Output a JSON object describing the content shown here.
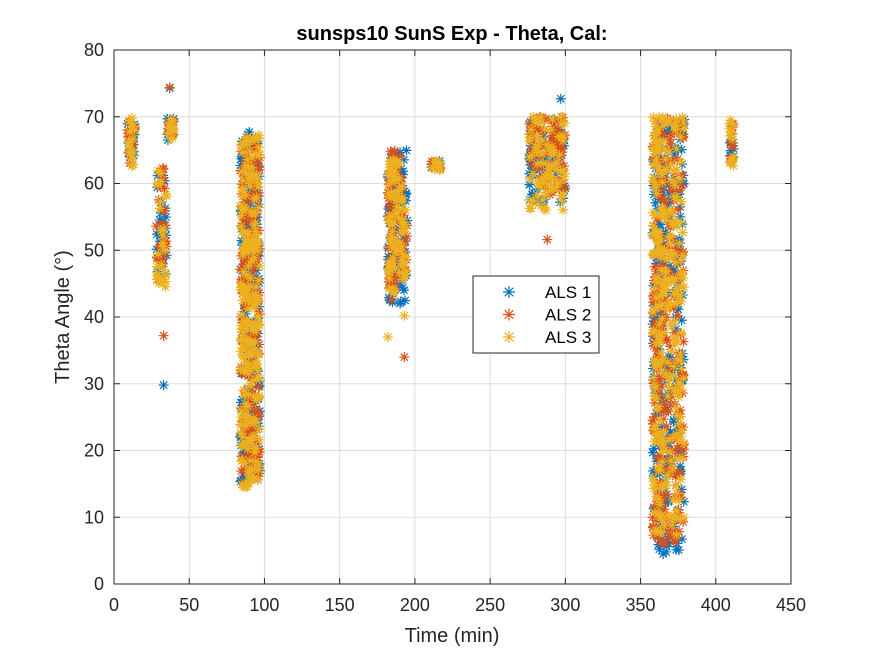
{
  "chart_data": {
    "type": "scatter",
    "title": "sunsps10 SunS Exp - Theta, Cal:",
    "xlabel": "Time (min)",
    "ylabel": "Theta Angle (°)",
    "xlim": [
      0,
      450
    ],
    "ylim": [
      0,
      80
    ],
    "xticks": [
      0,
      50,
      100,
      150,
      200,
      250,
      300,
      350,
      400,
      450
    ],
    "yticks": [
      0,
      10,
      20,
      30,
      40,
      50,
      60,
      70,
      80
    ],
    "grid": true,
    "legend_position": "center-right",
    "marker": "asterisk",
    "series": [
      {
        "name": "ALS 1",
        "color": "#0072BD",
        "segments": [
          {
            "x": [
              9,
              14
            ],
            "y": [
              62.5,
              69.5
            ],
            "n": 18
          },
          {
            "x": [
              28,
              35
            ],
            "y": [
              45.5,
              62.5
            ],
            "n": 30
          },
          {
            "x": [
              35.5,
              40
            ],
            "y": [
              66.5,
              70
            ],
            "n": 12
          },
          {
            "x": [
              84,
              90
            ],
            "y": [
              15,
              68
            ],
            "n": 110
          },
          {
            "x": [
              90,
              97
            ],
            "y": [
              15,
              68
            ],
            "n": 110
          },
          {
            "x": [
              182,
              186
            ],
            "y": [
              42,
              65
            ],
            "n": 45
          },
          {
            "x": [
              186,
              195
            ],
            "y": [
              42,
              65
            ],
            "n": 45
          },
          {
            "x": [
              211,
              217
            ],
            "y": [
              62,
              63.5
            ],
            "n": 10
          },
          {
            "x": [
              276,
              300
            ],
            "y": [
              57,
              70
            ],
            "n": 80
          },
          {
            "x": [
              358,
              366
            ],
            "y": [
              5,
              70
            ],
            "n": 140
          },
          {
            "x": [
              366,
              379
            ],
            "y": [
              5,
              70
            ],
            "n": 140
          },
          {
            "x": [
              409,
              412
            ],
            "y": [
              63,
              69.5
            ],
            "n": 12
          }
        ],
        "points": [
          {
            "x": 33,
            "y": 29.8
          },
          {
            "x": 37,
            "y": 74.3
          },
          {
            "x": 297,
            "y": 72.7
          },
          {
            "x": 365,
            "y": 4.5
          },
          {
            "x": 367,
            "y": 4.8
          }
        ]
      },
      {
        "name": "ALS 2",
        "color": "#D95319",
        "segments": [
          {
            "x": [
              9,
              14
            ],
            "y": [
              63,
              69.5
            ],
            "n": 18
          },
          {
            "x": [
              28,
              35
            ],
            "y": [
              45,
              62.5
            ],
            "n": 30
          },
          {
            "x": [
              35.5,
              40
            ],
            "y": [
              66.5,
              70
            ],
            "n": 12
          },
          {
            "x": [
              84,
              90
            ],
            "y": [
              15,
              68
            ],
            "n": 110
          },
          {
            "x": [
              90,
              97
            ],
            "y": [
              15,
              68
            ],
            "n": 110
          },
          {
            "x": [
              182,
              186
            ],
            "y": [
              41.5,
              65
            ],
            "n": 45
          },
          {
            "x": [
              186,
              195
            ],
            "y": [
              44,
              65
            ],
            "n": 45
          },
          {
            "x": [
              211,
              217
            ],
            "y": [
              62,
              63.5
            ],
            "n": 10
          },
          {
            "x": [
              276,
              300
            ],
            "y": [
              58,
              70
            ],
            "n": 80
          },
          {
            "x": [
              358,
              366
            ],
            "y": [
              6,
              70
            ],
            "n": 140
          },
          {
            "x": [
              366,
              379
            ],
            "y": [
              6,
              70
            ],
            "n": 140
          },
          {
            "x": [
              409,
              412
            ],
            "y": [
              63,
              69.5
            ],
            "n": 12
          }
        ],
        "points": [
          {
            "x": 33,
            "y": 37.2
          },
          {
            "x": 37,
            "y": 74.4
          },
          {
            "x": 193,
            "y": 34
          },
          {
            "x": 193,
            "y": 46
          },
          {
            "x": 288,
            "y": 51.6
          },
          {
            "x": 296,
            "y": 68
          }
        ]
      },
      {
        "name": "ALS 3",
        "color": "#EDB120",
        "segments": [
          {
            "x": [
              9,
              14
            ],
            "y": [
              62,
              70
            ],
            "n": 18
          },
          {
            "x": [
              28,
              35
            ],
            "y": [
              44.5,
              62.5
            ],
            "n": 30
          },
          {
            "x": [
              35.5,
              40
            ],
            "y": [
              66.5,
              70
            ],
            "n": 12
          },
          {
            "x": [
              84,
              90
            ],
            "y": [
              14.5,
              67
            ],
            "n": 110
          },
          {
            "x": [
              90,
              97
            ],
            "y": [
              14.5,
              67.5
            ],
            "n": 110
          },
          {
            "x": [
              182,
              186
            ],
            "y": [
              43,
              64
            ],
            "n": 45
          },
          {
            "x": [
              186,
              195
            ],
            "y": [
              45,
              64
            ],
            "n": 45
          },
          {
            "x": [
              211,
              217
            ],
            "y": [
              62,
              63.5
            ],
            "n": 10
          },
          {
            "x": [
              276,
              300
            ],
            "y": [
              56,
              70
            ],
            "n": 80
          },
          {
            "x": [
              358,
              366
            ],
            "y": [
              7,
              70
            ],
            "n": 140
          },
          {
            "x": [
              366,
              379
            ],
            "y": [
              7,
              70
            ],
            "n": 140
          },
          {
            "x": [
              409,
              412
            ],
            "y": [
              62.5,
              69.5
            ],
            "n": 12
          }
        ],
        "points": [
          {
            "x": 182,
            "y": 37
          },
          {
            "x": 193,
            "y": 40.2
          },
          {
            "x": 194,
            "y": 49
          },
          {
            "x": 194,
            "y": 56
          },
          {
            "x": 287,
            "y": 56
          },
          {
            "x": 297,
            "y": 70
          }
        ]
      }
    ]
  }
}
